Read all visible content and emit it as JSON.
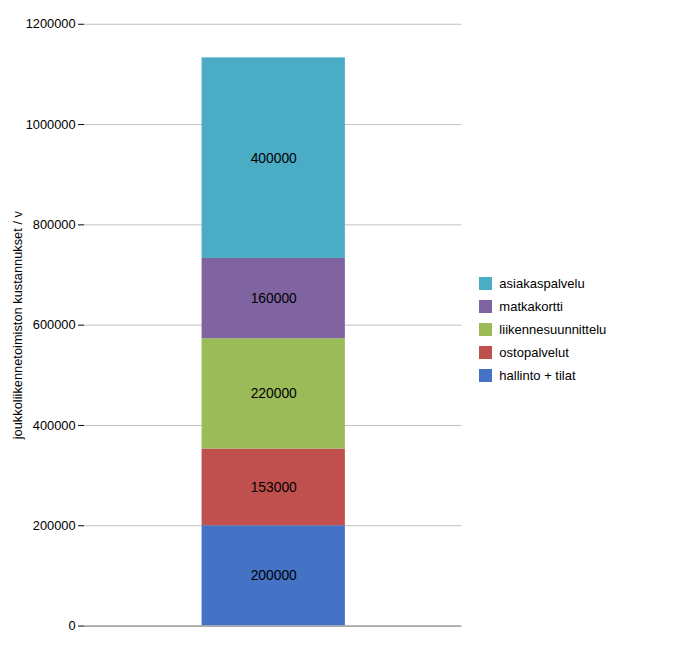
{
  "chart_data": {
    "type": "bar",
    "stacked": true,
    "categories": [
      null
    ],
    "series": [
      {
        "name": "hallinto + tilat",
        "color": "#4472C4",
        "values": [
          200000
        ]
      },
      {
        "name": "ostopalvelut",
        "color": "#C0504D",
        "values": [
          153000
        ]
      },
      {
        "name": "liikennesuunnittelu",
        "color": "#9BBB59",
        "values": [
          220000
        ]
      },
      {
        "name": "matkakortti",
        "color": "#8064A2",
        "values": [
          160000
        ]
      },
      {
        "name": "asiakaspalvelu",
        "color": "#4BACC6",
        "values": [
          400000
        ]
      }
    ],
    "ylabel": "joukkoliikennetoimiston kustannukset / v",
    "ylim": [
      0,
      1200000
    ],
    "yticks": [
      0,
      200000,
      400000,
      600000,
      800000,
      1000000,
      1200000
    ],
    "grid": true,
    "legend": "right",
    "data_labels": true,
    "tick_labels": "y"
  }
}
